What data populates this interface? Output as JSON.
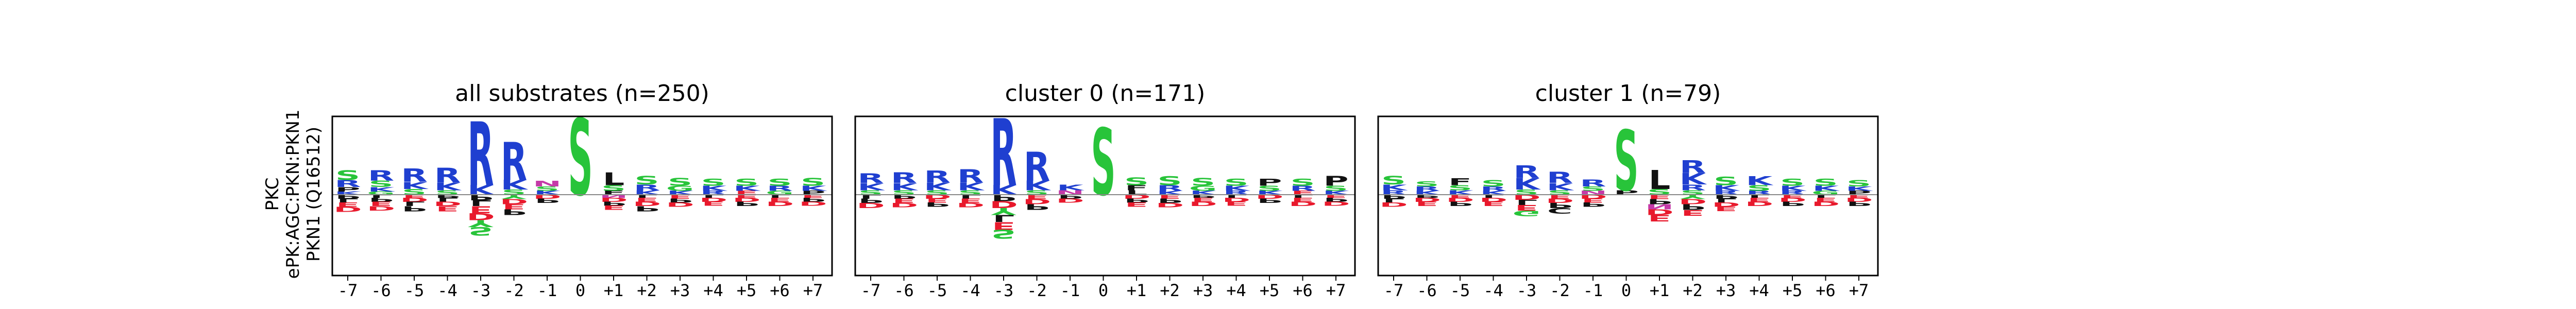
{
  "figure": {
    "ylabel_lines": [
      "PKC",
      "ePK:AGC:PKN:PKN1",
      "PKN1 (Q16512)"
    ]
  },
  "colors": {
    "R": "#1f3fd0",
    "K": "#1f3fd0",
    "H": "#1f3fd0",
    "S": "#28c43a",
    "T": "#28c43a",
    "G": "#28c43a",
    "Y": "#28c43a",
    "D": "#e8192c",
    "E": "#e8192c",
    "N": "#c53aa8",
    "Q": "#c53aa8",
    "P": "#111111",
    "L": "#111111",
    "A": "#111111",
    "V": "#111111",
    "F": "#111111",
    "I": "#111111",
    "M": "#111111",
    "C": "#111111",
    "W": "#111111",
    "axis": "#000000",
    "zero_line": "#888888"
  },
  "chart_data": [
    {
      "type": "sequence-logo",
      "title": "all substrates (n=250)",
      "positions": [
        "-7",
        "-6",
        "-5",
        "-4",
        "-3",
        "-2",
        "-1",
        "0",
        "+1",
        "+2",
        "+3",
        "+4",
        "+5",
        "+6",
        "+7"
      ],
      "up": [
        [
          [
            "S",
            0.3
          ],
          [
            "R",
            0.22
          ],
          [
            "P",
            0.14
          ],
          [
            "K",
            0.1
          ]
        ],
        [
          [
            "R",
            0.32
          ],
          [
            "S",
            0.2
          ],
          [
            "K",
            0.14
          ],
          [
            "G",
            0.1
          ]
        ],
        [
          [
            "R",
            0.42
          ],
          [
            "K",
            0.22
          ],
          [
            "S",
            0.18
          ]
        ],
        [
          [
            "R",
            0.46
          ],
          [
            "K",
            0.24
          ],
          [
            "S",
            0.14
          ]
        ],
        [
          [
            "R",
            2.0
          ],
          [
            "K",
            0.3
          ]
        ],
        [
          [
            "R",
            1.2
          ],
          [
            "K",
            0.3
          ],
          [
            "S",
            0.16
          ]
        ],
        [
          [
            "N",
            0.18
          ],
          [
            "S",
            0.14
          ],
          [
            "K",
            0.12
          ]
        ],
        [
          [
            "S",
            2.4
          ]
        ],
        [
          [
            "L",
            0.4
          ],
          [
            "S",
            0.18
          ],
          [
            "F",
            0.12
          ]
        ],
        [
          [
            "S",
            0.26
          ],
          [
            "R",
            0.18
          ],
          [
            "K",
            0.14
          ]
        ],
        [
          [
            "S",
            0.24
          ],
          [
            "G",
            0.16
          ],
          [
            "K",
            0.12
          ]
        ],
        [
          [
            "S",
            0.22
          ],
          [
            "K",
            0.16
          ],
          [
            "R",
            0.12
          ]
        ],
        [
          [
            "S",
            0.22
          ],
          [
            "K",
            0.16
          ],
          [
            "E",
            0.12
          ]
        ],
        [
          [
            "S",
            0.22
          ],
          [
            "R",
            0.16
          ],
          [
            "G",
            0.12
          ]
        ],
        [
          [
            "S",
            0.24
          ],
          [
            "K",
            0.16
          ],
          [
            "P",
            0.12
          ]
        ]
      ],
      "down": [
        [
          [
            "D",
            0.16
          ],
          [
            "E",
            0.14
          ],
          [
            "P",
            0.12
          ],
          [
            "L",
            0.12
          ]
        ],
        [
          [
            "E",
            0.14
          ],
          [
            "D",
            0.14
          ],
          [
            "P",
            0.12
          ],
          [
            "L",
            0.1
          ]
        ],
        [
          [
            "L",
            0.14
          ],
          [
            "P",
            0.16
          ],
          [
            "D",
            0.12
          ],
          [
            "E",
            0.1
          ]
        ],
        [
          [
            "E",
            0.16
          ],
          [
            "D",
            0.14
          ],
          [
            "L",
            0.12
          ],
          [
            "P",
            0.1
          ]
        ],
        [
          [
            "E",
            0.22
          ],
          [
            "D",
            0.22
          ],
          [
            "P",
            0.18
          ],
          [
            "Y",
            0.22
          ],
          [
            "S",
            0.26
          ],
          [
            "L",
            0.18
          ]
        ],
        [
          [
            "P",
            0.18
          ],
          [
            "D",
            0.16
          ],
          [
            "E",
            0.16
          ],
          [
            "Y",
            0.14
          ]
        ],
        [
          [
            "P",
            0.14
          ],
          [
            "D",
            0.12
          ]
        ],
        [],
        [
          [
            "E",
            0.14
          ],
          [
            "D",
            0.12
          ],
          [
            "P",
            0.12
          ],
          [
            "N",
            0.1
          ]
        ],
        [
          [
            "P",
            0.16
          ],
          [
            "D",
            0.14
          ],
          [
            "E",
            0.12
          ],
          [
            "L",
            0.1
          ]
        ],
        [
          [
            "D",
            0.14
          ],
          [
            "E",
            0.12
          ],
          [
            "P",
            0.12
          ]
        ],
        [
          [
            "D",
            0.12
          ],
          [
            "E",
            0.12
          ],
          [
            "L",
            0.1
          ]
        ],
        [
          [
            "P",
            0.14
          ],
          [
            "D",
            0.12
          ],
          [
            "E",
            0.1
          ]
        ],
        [
          [
            "D",
            0.14
          ],
          [
            "E",
            0.12
          ],
          [
            "L",
            0.1
          ]
        ],
        [
          [
            "P",
            0.12
          ],
          [
            "D",
            0.12
          ],
          [
            "E",
            0.1
          ]
        ]
      ]
    },
    {
      "type": "sequence-logo",
      "title": "cluster 0 (n=171)",
      "positions": [
        "-7",
        "-6",
        "-5",
        "-4",
        "-3",
        "-2",
        "-1",
        "0",
        "+1",
        "+2",
        "+3",
        "+4",
        "+5",
        "+6",
        "+7"
      ],
      "up": [
        [
          [
            "R",
            0.3
          ],
          [
            "K",
            0.22
          ],
          [
            "S",
            0.14
          ]
        ],
        [
          [
            "R",
            0.34
          ],
          [
            "K",
            0.22
          ],
          [
            "S",
            0.14
          ]
        ],
        [
          [
            "R",
            0.38
          ],
          [
            "K",
            0.24
          ],
          [
            "S",
            0.14
          ]
        ],
        [
          [
            "R",
            0.42
          ],
          [
            "K",
            0.24
          ],
          [
            "S",
            0.14
          ]
        ],
        [
          [
            "R",
            2.1
          ],
          [
            "K",
            0.3
          ]
        ],
        [
          [
            "R",
            0.9
          ],
          [
            "K",
            0.3
          ],
          [
            "S",
            0.14
          ]
        ],
        [
          [
            "K",
            0.18
          ],
          [
            "N",
            0.14
          ]
        ],
        [
          [
            "S",
            2.1
          ]
        ],
        [
          [
            "S",
            0.24
          ],
          [
            "F",
            0.16
          ],
          [
            "L",
            0.14
          ]
        ],
        [
          [
            "S",
            0.28
          ],
          [
            "R",
            0.18
          ],
          [
            "K",
            0.12
          ]
        ],
        [
          [
            "S",
            0.24
          ],
          [
            "G",
            0.16
          ],
          [
            "K",
            0.12
          ]
        ],
        [
          [
            "S",
            0.22
          ],
          [
            "K",
            0.16
          ],
          [
            "R",
            0.12
          ]
        ],
        [
          [
            "P",
            0.22
          ],
          [
            "S",
            0.16
          ],
          [
            "K",
            0.12
          ]
        ],
        [
          [
            "S",
            0.22
          ],
          [
            "R",
            0.16
          ],
          [
            "E",
            0.12
          ]
        ],
        [
          [
            "P",
            0.3
          ],
          [
            "S",
            0.16
          ],
          [
            "K",
            0.12
          ]
        ]
      ],
      "down": [
        [
          [
            "D",
            0.16
          ],
          [
            "P",
            0.14
          ],
          [
            "L",
            0.12
          ]
        ],
        [
          [
            "E",
            0.14
          ],
          [
            "D",
            0.14
          ],
          [
            "P",
            0.12
          ]
        ],
        [
          [
            "P",
            0.14
          ],
          [
            "D",
            0.12
          ],
          [
            "E",
            0.12
          ]
        ],
        [
          [
            "E",
            0.14
          ],
          [
            "D",
            0.14
          ],
          [
            "L",
            0.12
          ]
        ],
        [
          [
            "E",
            0.24
          ],
          [
            "D",
            0.22
          ],
          [
            "P",
            0.2
          ],
          [
            "Y",
            0.22
          ],
          [
            "S",
            0.28
          ],
          [
            "L",
            0.22
          ]
        ],
        [
          [
            "P",
            0.18
          ],
          [
            "D",
            0.16
          ],
          [
            "E",
            0.14
          ]
        ],
        [
          [
            "P",
            0.12
          ],
          [
            "D",
            0.12
          ]
        ],
        [],
        [
          [
            "E",
            0.14
          ],
          [
            "D",
            0.12
          ],
          [
            "P",
            0.12
          ]
        ],
        [
          [
            "P",
            0.14
          ],
          [
            "D",
            0.14
          ],
          [
            "E",
            0.12
          ]
        ],
        [
          [
            "D",
            0.14
          ],
          [
            "E",
            0.12
          ],
          [
            "P",
            0.1
          ]
        ],
        [
          [
            "D",
            0.12
          ],
          [
            "E",
            0.12
          ],
          [
            "L",
            0.1
          ]
        ],
        [
          [
            "P",
            0.14
          ],
          [
            "D",
            0.12
          ]
        ],
        [
          [
            "D",
            0.14
          ],
          [
            "E",
            0.12
          ],
          [
            "L",
            0.1
          ]
        ],
        [
          [
            "P",
            0.12
          ],
          [
            "D",
            0.12
          ],
          [
            "E",
            0.1
          ]
        ]
      ]
    },
    {
      "type": "sequence-logo",
      "title": "cluster 1 (n=79)",
      "positions": [
        "-7",
        "-6",
        "-5",
        "-4",
        "-3",
        "-2",
        "-1",
        "0",
        "+1",
        "+2",
        "+3",
        "+4",
        "+5",
        "+6",
        "+7"
      ],
      "up": [
        [
          [
            "S",
            0.26
          ],
          [
            "K",
            0.18
          ],
          [
            "R",
            0.14
          ]
        ],
        [
          [
            "S",
            0.16
          ],
          [
            "R",
            0.14
          ],
          [
            "K",
            0.12
          ]
        ],
        [
          [
            "F",
            0.22
          ],
          [
            "S",
            0.16
          ],
          [
            "K",
            0.14
          ]
        ],
        [
          [
            "S",
            0.2
          ],
          [
            "R",
            0.14
          ],
          [
            "K",
            0.12
          ]
        ],
        [
          [
            "R",
            0.4
          ],
          [
            "K",
            0.36
          ],
          [
            "S",
            0.16
          ]
        ],
        [
          [
            "R",
            0.36
          ],
          [
            "K",
            0.22
          ],
          [
            "S",
            0.14
          ]
        ],
        [
          [
            "R",
            0.22
          ],
          [
            "S",
            0.14
          ],
          [
            "N",
            0.12
          ]
        ],
        [
          [
            "S",
            1.9
          ],
          [
            "P",
            0.14
          ]
        ],
        [
          [
            "L",
            0.6
          ],
          [
            "S",
            0.18
          ]
        ],
        [
          [
            "R",
            0.4
          ],
          [
            "K",
            0.36
          ],
          [
            "R",
            0.18
          ],
          [
            "S",
            0.14
          ]
        ],
        [
          [
            "S",
            0.26
          ],
          [
            "K",
            0.18
          ],
          [
            "R",
            0.12
          ]
        ],
        [
          [
            "K",
            0.28
          ],
          [
            "S",
            0.18
          ],
          [
            "R",
            0.12
          ]
        ],
        [
          [
            "S",
            0.22
          ],
          [
            "K",
            0.16
          ],
          [
            "R",
            0.12
          ]
        ],
        [
          [
            "S",
            0.22
          ],
          [
            "K",
            0.16
          ],
          [
            "G",
            0.12
          ]
        ],
        [
          [
            "S",
            0.2
          ],
          [
            "K",
            0.14
          ],
          [
            "P",
            0.12
          ]
        ]
      ],
      "down": [
        [
          [
            "D",
            0.14
          ],
          [
            "P",
            0.12
          ],
          [
            "L",
            0.12
          ]
        ],
        [
          [
            "E",
            0.14
          ],
          [
            "D",
            0.12
          ],
          [
            "P",
            0.1
          ]
        ],
        [
          [
            "P",
            0.14
          ],
          [
            "D",
            0.12
          ],
          [
            "E",
            0.1
          ]
        ],
        [
          [
            "E",
            0.14
          ],
          [
            "D",
            0.12
          ],
          [
            "L",
            0.1
          ]
        ],
        [
          [
            "E",
            0.18
          ],
          [
            "D",
            0.16
          ],
          [
            "G",
            0.18
          ],
          [
            "L",
            0.16
          ]
        ],
        [
          [
            "P",
            0.16
          ],
          [
            "D",
            0.14
          ],
          [
            "E",
            0.12
          ],
          [
            "C",
            0.18
          ]
        ],
        [
          [
            "P",
            0.14
          ],
          [
            "D",
            0.12
          ],
          [
            "E",
            0.12
          ]
        ],
        [],
        [
          [
            "E",
            0.2
          ],
          [
            "D",
            0.18
          ],
          [
            "P",
            0.16
          ],
          [
            "N",
            0.16
          ],
          [
            "E",
            0.14
          ]
        ],
        [
          [
            "P",
            0.18
          ],
          [
            "D",
            0.16
          ],
          [
            "E",
            0.18
          ],
          [
            "Y",
            0.14
          ]
        ],
        [
          [
            "D",
            0.14
          ],
          [
            "E",
            0.14
          ],
          [
            "P",
            0.12
          ],
          [
            "L",
            0.12
          ]
        ],
        [
          [
            "D",
            0.14
          ],
          [
            "E",
            0.12
          ],
          [
            "L",
            0.1
          ]
        ],
        [
          [
            "P",
            0.14
          ],
          [
            "D",
            0.12
          ],
          [
            "E",
            0.1
          ]
        ],
        [
          [
            "D",
            0.14
          ],
          [
            "E",
            0.12
          ],
          [
            "L",
            0.1
          ]
        ],
        [
          [
            "P",
            0.14
          ],
          [
            "D",
            0.12
          ],
          [
            "E",
            0.1
          ]
        ]
      ]
    }
  ]
}
